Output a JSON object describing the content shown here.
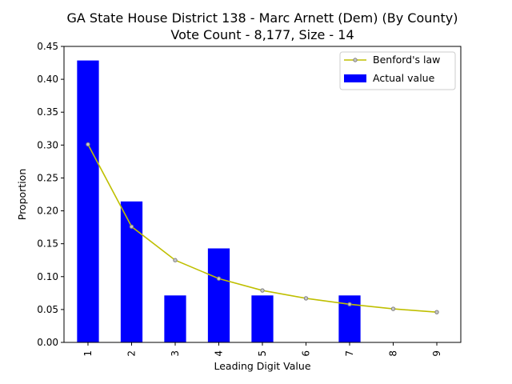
{
  "chart_data": {
    "type": "bar",
    "title": "GA State House District 138 - Marc Arnett (Dem) (By County)",
    "subtitle": "Vote Count - 8,177, Size - 14",
    "xlabel": "Leading Digit Value",
    "ylabel": "Proportion",
    "categories": [
      "1",
      "2",
      "3",
      "4",
      "5",
      "6",
      "7",
      "8",
      "9"
    ],
    "ylim": [
      0,
      0.45
    ],
    "yticks": [
      "0.00",
      "0.05",
      "0.10",
      "0.15",
      "0.20",
      "0.25",
      "0.30",
      "0.35",
      "0.40",
      "0.45"
    ],
    "grid": false,
    "legend_position": "top-right",
    "series": [
      {
        "name": "Benford's law",
        "kind": "line",
        "color": "#bfbf00",
        "marker_fill": "#c8c8c8",
        "values": [
          0.301,
          0.176,
          0.125,
          0.097,
          0.079,
          0.067,
          0.058,
          0.051,
          0.046
        ]
      },
      {
        "name": "Actual value",
        "kind": "bar",
        "color": "#0000ff",
        "values": [
          0.4286,
          0.2143,
          0.0714,
          0.1429,
          0.0714,
          0.0,
          0.0714,
          0.0,
          0.0
        ]
      }
    ]
  }
}
